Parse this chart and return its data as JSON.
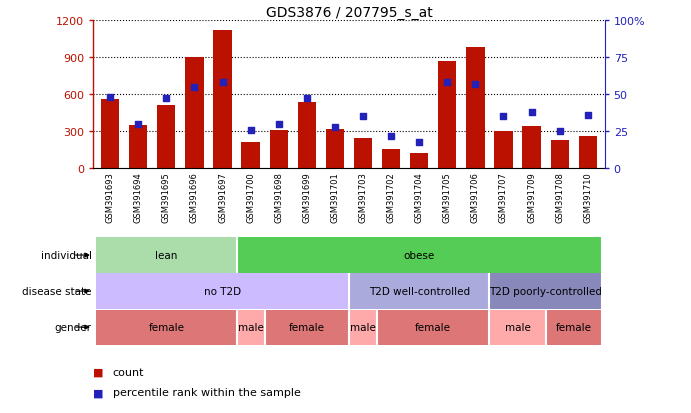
{
  "title": "GDS3876 / 207795_s_at",
  "samples": [
    "GSM391693",
    "GSM391694",
    "GSM391695",
    "GSM391696",
    "GSM391697",
    "GSM391700",
    "GSM391698",
    "GSM391699",
    "GSM391701",
    "GSM391703",
    "GSM391702",
    "GSM391704",
    "GSM391705",
    "GSM391706",
    "GSM391707",
    "GSM391709",
    "GSM391708",
    "GSM391710"
  ],
  "counts": [
    560,
    350,
    510,
    900,
    1120,
    210,
    310,
    535,
    320,
    245,
    155,
    120,
    870,
    980,
    300,
    340,
    230,
    260
  ],
  "percentile_ranks": [
    48,
    30,
    47,
    55,
    58,
    26,
    30,
    47,
    28,
    35,
    22,
    18,
    58,
    57,
    35,
    38,
    25,
    36
  ],
  "ylim_left": [
    0,
    1200
  ],
  "ylim_right": [
    0,
    100
  ],
  "yticks_left": [
    0,
    300,
    600,
    900,
    1200
  ],
  "yticks_right": [
    0,
    25,
    50,
    75,
    100
  ],
  "bar_color": "#bb1100",
  "dot_color": "#2222bb",
  "individual_groups": [
    {
      "label": "lean",
      "start": 0,
      "end": 5,
      "color": "#aaddaa"
    },
    {
      "label": "obese",
      "start": 5,
      "end": 18,
      "color": "#55cc55"
    }
  ],
  "disease_groups": [
    {
      "label": "no T2D",
      "start": 0,
      "end": 9,
      "color": "#ccbbff"
    },
    {
      "label": "T2D well-controlled",
      "start": 9,
      "end": 14,
      "color": "#aaaadd"
    },
    {
      "label": "T2D poorly-controlled",
      "start": 14,
      "end": 18,
      "color": "#8888bb"
    }
  ],
  "gender_groups": [
    {
      "label": "female",
      "start": 0,
      "end": 5,
      "color": "#dd7777"
    },
    {
      "label": "male",
      "start": 5,
      "end": 6,
      "color": "#ffaaaa"
    },
    {
      "label": "female",
      "start": 6,
      "end": 9,
      "color": "#dd7777"
    },
    {
      "label": "male",
      "start": 9,
      "end": 10,
      "color": "#ffaaaa"
    },
    {
      "label": "female",
      "start": 10,
      "end": 14,
      "color": "#dd7777"
    },
    {
      "label": "male",
      "start": 14,
      "end": 16,
      "color": "#ffaaaa"
    },
    {
      "label": "female",
      "start": 16,
      "end": 18,
      "color": "#dd7777"
    }
  ],
  "legend_count_label": "count",
  "legend_percentile_label": "percentile rank within the sample",
  "axis_left_color": "#bb1100",
  "axis_right_color": "#2222bb",
  "figsize": [
    6.91,
    4.14
  ],
  "dpi": 100
}
